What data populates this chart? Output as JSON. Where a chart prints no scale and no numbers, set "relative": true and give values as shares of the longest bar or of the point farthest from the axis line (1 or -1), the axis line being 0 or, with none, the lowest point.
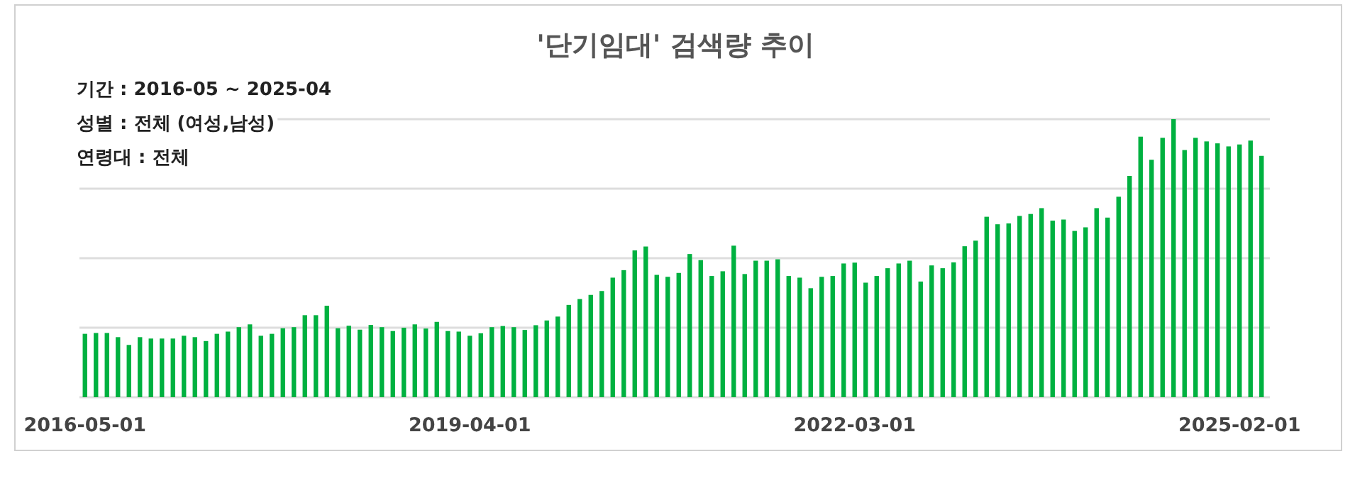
{
  "chart_data": {
    "type": "bar",
    "title": "'단기임대' 검색량 추이",
    "relative": true,
    "grid": "y",
    "color": "#00b140",
    "annotations": [
      "기간 : 2016-05 ~ 2025-04",
      "성별 : 전체 (여성,남성)",
      "연령대 :  전체"
    ],
    "categories": [
      "2016-05-01",
      null,
      null,
      null,
      null,
      null,
      null,
      null,
      null,
      null,
      null,
      null,
      null,
      null,
      null,
      null,
      null,
      null,
      null,
      null,
      null,
      null,
      null,
      null,
      null,
      null,
      null,
      null,
      null,
      null,
      null,
      null,
      null,
      null,
      null,
      "2019-04-01",
      null,
      null,
      null,
      null,
      null,
      null,
      null,
      null,
      null,
      null,
      null,
      null,
      null,
      null,
      null,
      null,
      null,
      null,
      null,
      null,
      null,
      null,
      null,
      null,
      null,
      null,
      null,
      null,
      null,
      null,
      null,
      null,
      null,
      null,
      "2022-03-01",
      null,
      null,
      null,
      null,
      null,
      null,
      null,
      null,
      null,
      null,
      null,
      null,
      null,
      null,
      null,
      null,
      null,
      null,
      null,
      null,
      null,
      null,
      null,
      null,
      null,
      null,
      null,
      null,
      null,
      null,
      null,
      null,
      null,
      null,
      "2025-02-01",
      null,
      null
    ],
    "values": [
      0.228,
      0.231,
      0.231,
      0.216,
      0.188,
      0.216,
      0.211,
      0.211,
      0.211,
      0.221,
      0.216,
      0.202,
      0.228,
      0.236,
      0.252,
      0.262,
      0.221,
      0.228,
      0.248,
      0.252,
      0.295,
      0.295,
      0.329,
      0.248,
      0.257,
      0.243,
      0.26,
      0.252,
      0.238,
      0.25,
      0.262,
      0.247,
      0.271,
      0.238,
      0.236,
      0.221,
      0.23,
      0.252,
      0.256,
      0.252,
      0.242,
      0.259,
      0.276,
      0.29,
      0.332,
      0.353,
      0.368,
      0.382,
      0.43,
      0.457,
      0.528,
      0.542,
      0.44,
      0.433,
      0.447,
      0.515,
      0.493,
      0.436,
      0.453,
      0.545,
      0.443,
      0.491,
      0.491,
      0.496,
      0.436,
      0.43,
      0.392,
      0.433,
      0.436,
      0.481,
      0.484,
      0.412,
      0.436,
      0.464,
      0.481,
      0.491,
      0.416,
      0.474,
      0.464,
      0.485,
      0.543,
      0.563,
      0.649,
      0.622,
      0.625,
      0.652,
      0.659,
      0.68,
      0.635,
      0.639,
      0.598,
      0.611,
      0.68,
      0.646,
      0.721,
      0.796,
      0.937,
      0.854,
      0.933,
      1.0,
      0.889,
      0.933,
      0.92,
      0.913,
      0.902,
      0.909,
      0.923,
      0.868
    ]
  }
}
